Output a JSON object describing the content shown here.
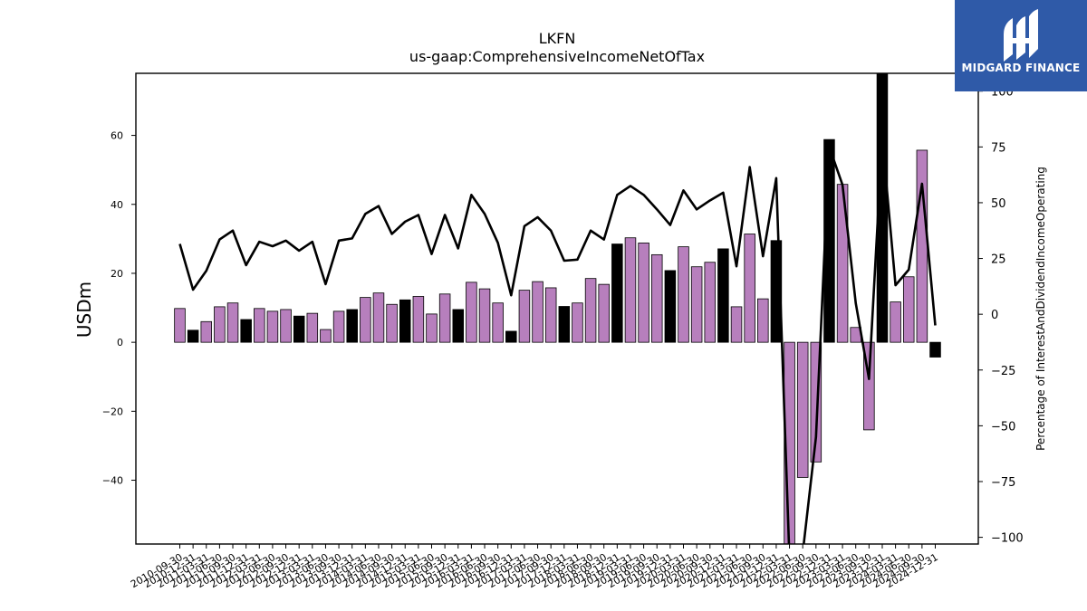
{
  "brand": {
    "name": "MIDGARD FINANCE",
    "icon": "midgard-logo-icon",
    "color": "#2f5aa8"
  },
  "chart_data": {
    "type": "bar",
    "title": "LKFN",
    "subtitle": "us-gaap:ComprehensiveIncomeNetOfTax",
    "ylabel": "USDm",
    "y2label": "Percentage of InterestAndDividendIncomeOperating",
    "ylim": [
      -58.5,
      78
    ],
    "y2lim": [
      -103,
      108
    ],
    "yticks": [
      -40,
      -20,
      0,
      20,
      40,
      60
    ],
    "y2ticks": [
      -100,
      -75,
      -50,
      -25,
      0,
      25,
      50,
      75,
      100
    ],
    "colors": {
      "quarter_bar": "#b77fbd",
      "annual_bar": "#000000",
      "line": "#000000"
    },
    "categories": [
      "2010-09-30",
      "2010-12-31",
      "2011-03-31",
      "2011-06-30",
      "2011-09-30",
      "2011-12-31",
      "2012-03-31",
      "2012-06-30",
      "2012-09-30",
      "2012-12-31",
      "2013-03-31",
      "2013-06-30",
      "2013-09-30",
      "2013-12-31",
      "2014-03-31",
      "2014-06-30",
      "2014-09-30",
      "2014-12-31",
      "2015-03-31",
      "2015-06-30",
      "2015-09-30",
      "2015-12-31",
      "2016-03-31",
      "2016-06-30",
      "2016-09-30",
      "2016-12-31",
      "2017-03-31",
      "2017-06-30",
      "2017-09-30",
      "2017-12-31",
      "2018-03-31",
      "2018-06-30",
      "2018-09-30",
      "2018-12-31",
      "2019-03-31",
      "2019-06-30",
      "2019-09-30",
      "2019-12-31",
      "2020-03-31",
      "2020-06-30",
      "2020-09-30",
      "2020-12-31",
      "2021-03-31",
      "2021-06-30",
      "2021-09-30",
      "2021-12-31",
      "2022-03-31",
      "2022-06-30",
      "2022-09-30",
      "2022-12-31",
      "2023-03-31",
      "2023-06-30",
      "2023-09-30",
      "2023-12-31",
      "2024-03-31",
      "2024-06-30",
      "2024-09-30",
      "2024-12-31"
    ],
    "series": [
      {
        "kind": "bar",
        "values": [
          9.8,
          3.5,
          6.0,
          10.3,
          11.4,
          6.6,
          9.8,
          9.0,
          9.5,
          7.6,
          8.4,
          3.7,
          9.0,
          9.5,
          13.0,
          14.3,
          11.0,
          12.3,
          13.3,
          8.2,
          14.0,
          9.5,
          17.4,
          15.5,
          11.4,
          3.2,
          15.1,
          17.6,
          15.8,
          10.4,
          11.4,
          18.5,
          16.8,
          28.5,
          30.3,
          28.8,
          25.4,
          20.8,
          27.7,
          21.9,
          23.2,
          27.1,
          10.3,
          31.4,
          12.6,
          29.5,
          -61.0,
          -39.2,
          -34.7,
          58.8,
          45.8,
          4.3,
          -25.4,
          80.0,
          11.7,
          19.0,
          55.7,
          -4.3
        ],
        "annual": [
          false,
          true,
          false,
          false,
          false,
          true,
          false,
          false,
          false,
          true,
          false,
          false,
          false,
          true,
          false,
          false,
          false,
          true,
          false,
          false,
          false,
          true,
          false,
          false,
          false,
          true,
          false,
          false,
          false,
          true,
          false,
          false,
          false,
          true,
          false,
          false,
          false,
          true,
          false,
          false,
          false,
          true,
          false,
          false,
          false,
          true,
          false,
          false,
          false,
          true,
          false,
          false,
          false,
          true,
          false,
          false,
          false,
          true
        ]
      },
      {
        "kind": "line",
        "axis": "right",
        "values": [
          31.5,
          11.0,
          19.5,
          33.5,
          37.5,
          22.0,
          32.5,
          30.5,
          33.0,
          28.5,
          32.5,
          13.5,
          33.0,
          34.0,
          45.0,
          48.5,
          36.0,
          41.5,
          44.5,
          27.0,
          44.5,
          29.5,
          53.5,
          45.0,
          32.0,
          8.5,
          39.5,
          43.5,
          37.5,
          24.0,
          24.5,
          37.5,
          33.5,
          53.5,
          57.5,
          53.5,
          47.0,
          40.0,
          55.5,
          47.0,
          51.0,
          54.5,
          21.5,
          66.0,
          26.0,
          61.0,
          -110.0,
          -107.0,
          -55.0,
          75.0,
          58.0,
          5.0,
          -29.0,
          79.0,
          13.0,
          20.0,
          58.5,
          -5.0
        ]
      }
    ]
  }
}
